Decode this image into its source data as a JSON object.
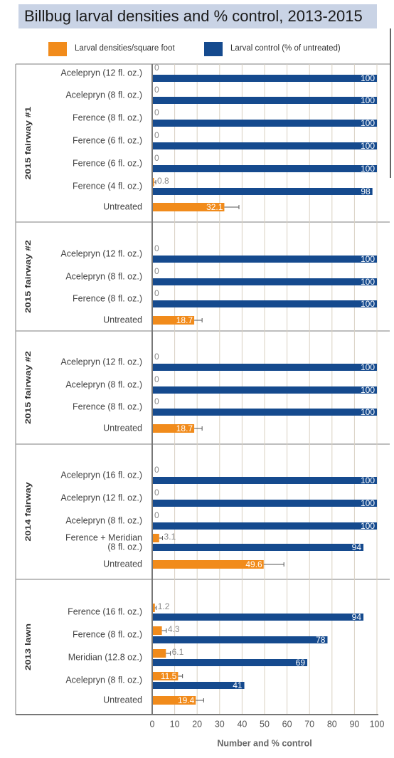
{
  "colors": {
    "density": "#f18b1b",
    "control": "#154a8e",
    "title_bg": "#c9d3e5",
    "grid": "#d8d0c2",
    "divider": "#a9a9a9"
  },
  "legend": {
    "density_label": "Larval densities/square foot",
    "control_label": "Larval control (% of untreated)"
  },
  "chart_data": {
    "type": "bar",
    "orientation": "horizontal",
    "title": "Billbug larval densities and % control, 2013-2015",
    "xlabel": "Number and % control",
    "xlim": [
      0,
      100
    ],
    "xticks": [
      0,
      10,
      20,
      30,
      40,
      50,
      60,
      70,
      80,
      90,
      100
    ],
    "grid": true,
    "legend_position": "top",
    "series": [
      {
        "name": "Larval densities/square foot",
        "key": "density"
      },
      {
        "name": "Larval control (% of untreated)",
        "key": "control"
      }
    ],
    "groups": [
      {
        "label": "2015 fairway #1",
        "treatments": [
          {
            "label": "Acelepryn (12 fl. oz.)",
            "density": 0,
            "control": 100
          },
          {
            "label": "Acelepryn (8 fl. oz.)",
            "density": 0,
            "control": 100
          },
          {
            "label": "Ference (8 fl. oz.)",
            "density": 0,
            "control": 100
          },
          {
            "label": "Ference (6 fl. oz.)",
            "density": 0,
            "control": 100
          },
          {
            "label": "Ference (6 fl. oz.)",
            "density": 0,
            "control": 100
          },
          {
            "label": "Ference (4 fl. oz.)",
            "density": 0.8,
            "density_err": 0.8,
            "control": 98
          },
          {
            "label": "Untreated",
            "density": 32.1,
            "density_err": 6.5
          }
        ]
      },
      {
        "label": "2015 fairway #2",
        "treatments": [
          {
            "label": "Acelepryn (12 fl. oz.)",
            "density": 0,
            "control": 100
          },
          {
            "label": "Acelepryn (8 fl. oz.)",
            "density": 0,
            "control": 100
          },
          {
            "label": "Ference (8 fl. oz.)",
            "density": 0,
            "control": 100
          },
          {
            "label": "Untreated",
            "density": 18.7,
            "density_err": 3.5
          }
        ]
      },
      {
        "label": "2015 fairway #2",
        "treatments": [
          {
            "label": "Acelepryn (12 fl. oz.)",
            "density": 0,
            "control": 100
          },
          {
            "label": "Acelepryn (8 fl. oz.)",
            "density": 0,
            "control": 100
          },
          {
            "label": "Ference (8 fl. oz.)",
            "density": 0,
            "control": 100
          },
          {
            "label": "Untreated",
            "density": 18.7,
            "density_err": 3.5
          }
        ]
      },
      {
        "label": "2014 fairway",
        "treatments": [
          {
            "label": "Acelepryn (16 fl. oz.)",
            "density": 0,
            "control": 100
          },
          {
            "label": "Acelepryn (12 fl. oz.)",
            "density": 0,
            "control": 100
          },
          {
            "label": "Acelepryn (8 fl. oz.)",
            "density": 0,
            "control": 100
          },
          {
            "label": "Ference + Meridian",
            "label2": "(8 fl. oz.)",
            "density": 3.1,
            "density_err": 1.5,
            "control": 94
          },
          {
            "label": "Untreated",
            "density": 49.6,
            "density_err": 9
          }
        ]
      },
      {
        "label": "2013 lawn",
        "treatments": [
          {
            "label": "Ference (16 fl. oz.)",
            "density": 1.2,
            "density_err": 0.6,
            "control": 94
          },
          {
            "label": "Ference (8 fl. oz.)",
            "density": 4.3,
            "density_err": 2,
            "control": 78
          },
          {
            "label": "Meridian (12.8 oz.)",
            "density": 6.1,
            "density_err": 2,
            "control": 69
          },
          {
            "label": "Acelepryn (8 fl. oz.)",
            "density": 11.5,
            "density_err": 2,
            "control": 41
          },
          {
            "label": "Untreated",
            "density": 19.4,
            "density_err": 3.5
          }
        ]
      }
    ]
  }
}
